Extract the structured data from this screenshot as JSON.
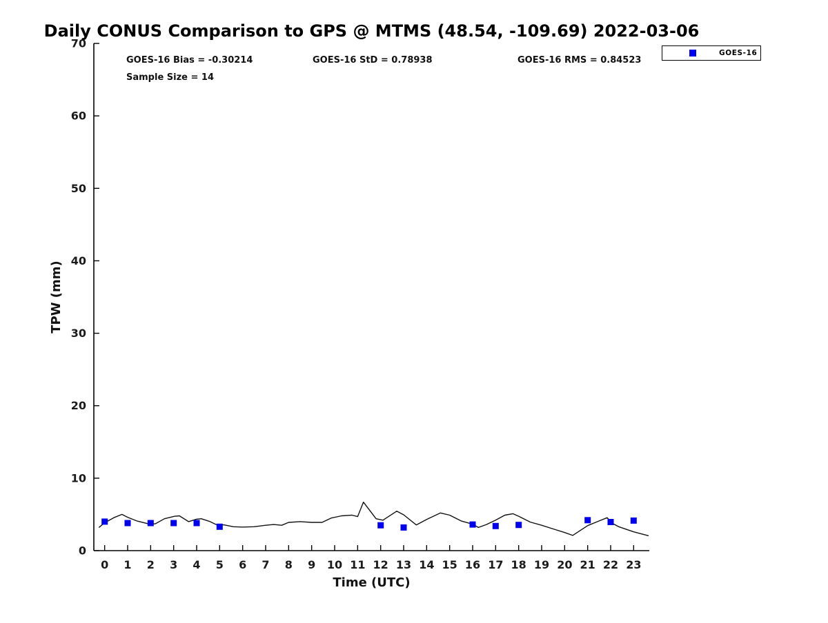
{
  "chart_data": {
    "type": "line",
    "title": "Daily CONUS Comparison to GPS @ MTMS (48.54, -109.69) 2022-03-06",
    "xlabel": "Time (UTC)",
    "ylabel": "TPW (mm)",
    "xlim": [
      -0.47,
      23.68
    ],
    "ylim": [
      0,
      70
    ],
    "x_ticks": [
      0,
      1,
      2,
      3,
      4,
      5,
      6,
      7,
      8,
      9,
      10,
      11,
      12,
      13,
      14,
      15,
      16,
      17,
      18,
      19,
      20,
      21,
      22,
      23
    ],
    "y_ticks": [
      0,
      10,
      20,
      30,
      40,
      50,
      60,
      70
    ],
    "grid": false,
    "legend_position": "top-right-outside-axes",
    "annotations": {
      "bias": "GOES-16 Bias = -0.30214",
      "std": "GOES-16 StD = 0.78938",
      "rms": "GOES-16 RMS = 0.84523",
      "sample_size": "Sample Size = 14"
    },
    "legend": [
      {
        "label": "GOES-16",
        "marker": "square",
        "color": "#0000ee"
      }
    ],
    "series": [
      {
        "name": "GPS",
        "type": "line",
        "color": "#111111",
        "x": [
          -0.25,
          0,
          0.4,
          0.75,
          1,
          1.4,
          1.9,
          2.2,
          2.6,
          3.05,
          3.25,
          3.65,
          4,
          4.2,
          4.55,
          4.85,
          5.2,
          5.6,
          6,
          6.5,
          7,
          7.35,
          7.7,
          8,
          8.5,
          9,
          9.45,
          9.85,
          10.3,
          10.75,
          11,
          11.25,
          11.8,
          12.1,
          12.7,
          13,
          13.55,
          14,
          14.6,
          15,
          15.5,
          16,
          16.25,
          16.6,
          17,
          17.4,
          17.75,
          18,
          18.5,
          19,
          19.5,
          20,
          20.35,
          21,
          21.5,
          21.85,
          22.05,
          22.35,
          23,
          23.65
        ],
        "y": [
          3.2,
          3.85,
          4.55,
          5.0,
          4.6,
          4.1,
          3.7,
          3.7,
          4.4,
          4.75,
          4.8,
          4.0,
          4.35,
          4.4,
          4.05,
          3.6,
          3.55,
          3.3,
          3.25,
          3.3,
          3.5,
          3.6,
          3.5,
          3.9,
          4.0,
          3.9,
          3.9,
          4.5,
          4.8,
          4.9,
          4.7,
          6.7,
          4.4,
          4.2,
          5.45,
          4.95,
          3.55,
          4.3,
          5.2,
          4.9,
          4.1,
          3.65,
          3.2,
          3.6,
          4.2,
          4.9,
          5.1,
          4.75,
          3.95,
          3.5,
          3.0,
          2.5,
          2.1,
          3.45,
          4.1,
          4.55,
          3.8,
          3.3,
          2.6,
          2.05
        ]
      },
      {
        "name": "GOES-16",
        "type": "scatter",
        "marker": "square",
        "color": "#0000ee",
        "x": [
          0,
          1,
          2,
          3,
          4,
          5,
          12,
          13,
          16,
          17,
          18,
          21,
          22,
          23
        ],
        "y": [
          4.0,
          3.8,
          3.8,
          3.8,
          3.8,
          3.3,
          3.5,
          3.2,
          3.6,
          3.4,
          3.55,
          4.2,
          3.95,
          4.15
        ]
      }
    ]
  }
}
